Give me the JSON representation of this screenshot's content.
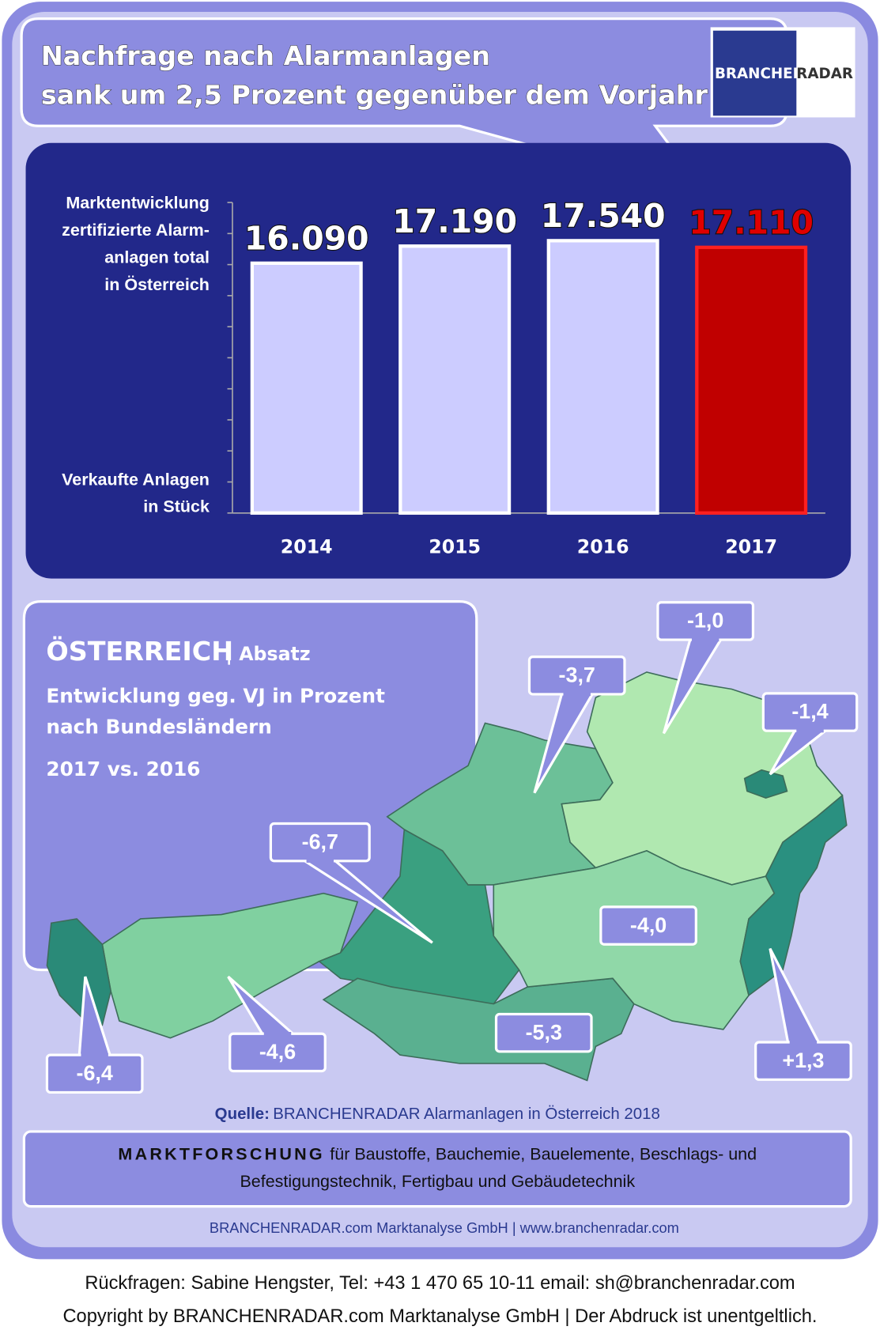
{
  "header": {
    "title": [
      "Nachfrage nach Alarmanlagen",
      "sank um 2,5 Prozent gegenüber dem Vorjahr"
    ],
    "logo": [
      "BRANCHEN",
      "RADAR"
    ]
  },
  "chart_data": {
    "type": "bar",
    "title": [
      "Marktentwicklung",
      "zertifizierte Alarm-",
      "anlagen total",
      "in Österreich"
    ],
    "y_label": [
      "Verkaufte Anlagen",
      "in Stück"
    ],
    "categories": [
      "2014",
      "2015",
      "2016",
      "2017"
    ],
    "values": [
      16090,
      17190,
      17540,
      17110
    ],
    "value_labels": [
      "16.090",
      "17.190",
      "17.540",
      "17.110"
    ],
    "colors": [
      "#ccccff",
      "#ccccff",
      "#ccccff",
      "#c00000"
    ],
    "value_label_colors": [
      "#ffffff",
      "#ffffff",
      "#ffffff",
      "#e00000"
    ],
    "ylim": [
      0,
      20000
    ],
    "yticks": [
      0,
      2000,
      4000,
      6000,
      8000,
      10000,
      12000,
      14000,
      16000,
      18000,
      20000
    ]
  },
  "map": {
    "title": "ÖSTERREICH",
    "title_suffix": "| Absatz",
    "subtitle": [
      "Entwicklung  geg. VJ in Prozent",
      "nach Bundesländern"
    ],
    "period": "2017 vs. 2016",
    "labels": [
      "-1,0",
      "-3,7",
      "-1,4",
      "-6,7",
      "-4,0",
      "-5,3",
      "+1,3",
      "-4,6",
      "-6,4"
    ]
  },
  "source": {
    "label": "Quelle:",
    "text": "BRANCHENRADAR Alarmanlagen  in Österreich 2018"
  },
  "banner": {
    "strong": "MARKTFORSCHUNG",
    "line1": "für Baustoffe, Bauchemie, Bauelemente, Beschlags- und",
    "line2": "Befestigungstechnik, Fertigbau und Gebäudetechnik"
  },
  "footer": {
    "company": "BRANCHENRADAR.com Marktanalyse GmbH | www.branchenradar.com",
    "contact": "Rückfragen: Sabine Hengster, Tel: +43 1 470 65 10-11 email: sh@branchenradar.com",
    "copyright": "Copyright by BRANCHENRADAR.com  Marktanalyse GmbH | Der Abdruck ist unentgeltlich."
  }
}
